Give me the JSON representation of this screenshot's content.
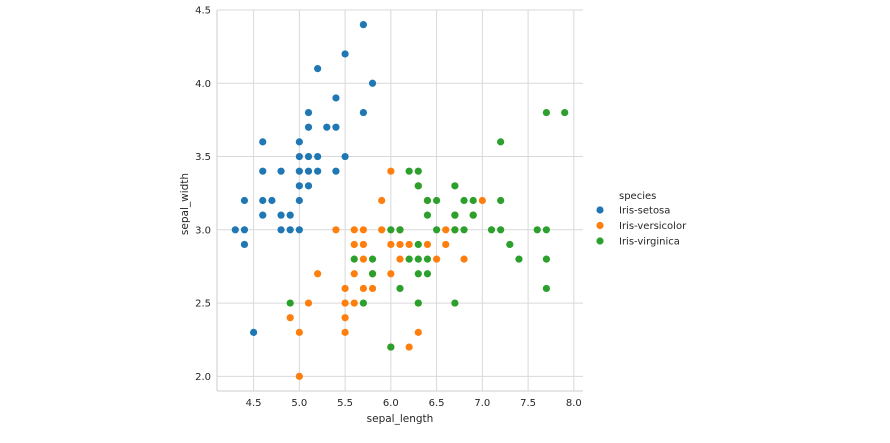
{
  "chart_data": {
    "type": "scatter",
    "xlabel": "sepal_length",
    "ylabel": "sepal_width",
    "xlim": [
      4.1,
      8.1
    ],
    "ylim": [
      1.9,
      4.5
    ],
    "xticks": [
      "4.5",
      "5.0",
      "5.5",
      "6.0",
      "6.5",
      "7.0",
      "7.5",
      "8.0"
    ],
    "yticks": [
      "2.0",
      "2.5",
      "3.0",
      "3.5",
      "4.0",
      "4.5"
    ],
    "grid": true,
    "legend": {
      "title": "species",
      "placement": "right"
    },
    "series": [
      {
        "name": "Iris-setosa",
        "color": "#1f77b4",
        "points": [
          [
            4.3,
            3.0
          ],
          [
            4.4,
            2.9
          ],
          [
            4.4,
            3.0
          ],
          [
            4.4,
            3.2
          ],
          [
            4.5,
            2.3
          ],
          [
            4.6,
            3.1
          ],
          [
            4.6,
            3.2
          ],
          [
            4.6,
            3.4
          ],
          [
            4.6,
            3.6
          ],
          [
            4.7,
            3.2
          ],
          [
            4.8,
            3.0
          ],
          [
            4.8,
            3.1
          ],
          [
            4.8,
            3.4
          ],
          [
            4.9,
            3.0
          ],
          [
            4.9,
            3.1
          ],
          [
            5.0,
            3.0
          ],
          [
            5.0,
            3.2
          ],
          [
            5.0,
            3.3
          ],
          [
            5.0,
            3.4
          ],
          [
            5.0,
            3.5
          ],
          [
            5.0,
            3.6
          ],
          [
            5.1,
            3.3
          ],
          [
            5.1,
            3.4
          ],
          [
            5.1,
            3.5
          ],
          [
            5.1,
            3.7
          ],
          [
            5.1,
            3.8
          ],
          [
            5.2,
            3.4
          ],
          [
            5.2,
            3.5
          ],
          [
            5.2,
            4.1
          ],
          [
            5.3,
            3.7
          ],
          [
            5.4,
            3.4
          ],
          [
            5.4,
            3.7
          ],
          [
            5.4,
            3.9
          ],
          [
            5.5,
            3.5
          ],
          [
            5.5,
            4.2
          ],
          [
            5.7,
            3.8
          ],
          [
            5.7,
            4.4
          ],
          [
            5.8,
            4.0
          ]
        ]
      },
      {
        "name": "Iris-versicolor",
        "color": "#ff7f0e",
        "points": [
          [
            4.9,
            2.4
          ],
          [
            5.0,
            2.0
          ],
          [
            5.0,
            2.3
          ],
          [
            5.1,
            2.5
          ],
          [
            5.2,
            2.7
          ],
          [
            5.4,
            3.0
          ],
          [
            5.5,
            2.3
          ],
          [
            5.5,
            2.4
          ],
          [
            5.5,
            2.5
          ],
          [
            5.5,
            2.6
          ],
          [
            5.6,
            2.5
          ],
          [
            5.6,
            2.7
          ],
          [
            5.6,
            2.9
          ],
          [
            5.6,
            3.0
          ],
          [
            5.7,
            2.6
          ],
          [
            5.7,
            2.8
          ],
          [
            5.7,
            2.9
          ],
          [
            5.7,
            3.0
          ],
          [
            5.8,
            2.6
          ],
          [
            5.8,
            2.7
          ],
          [
            5.9,
            3.0
          ],
          [
            5.9,
            3.2
          ],
          [
            6.0,
            2.2
          ],
          [
            6.0,
            2.7
          ],
          [
            6.0,
            2.9
          ],
          [
            6.0,
            3.4
          ],
          [
            6.1,
            2.8
          ],
          [
            6.1,
            2.9
          ],
          [
            6.1,
            3.0
          ],
          [
            6.2,
            2.2
          ],
          [
            6.2,
            2.9
          ],
          [
            6.3,
            2.3
          ],
          [
            6.3,
            2.5
          ],
          [
            6.3,
            3.3
          ],
          [
            6.4,
            2.9
          ],
          [
            6.4,
            3.2
          ],
          [
            6.5,
            2.8
          ],
          [
            6.6,
            2.9
          ],
          [
            6.6,
            3.0
          ],
          [
            6.7,
            3.0
          ],
          [
            6.7,
            3.1
          ],
          [
            6.8,
            2.8
          ],
          [
            6.9,
            3.1
          ],
          [
            7.0,
            3.2
          ]
        ]
      },
      {
        "name": "Iris-virginica",
        "color": "#2ca02c",
        "points": [
          [
            4.9,
            2.5
          ],
          [
            5.6,
            2.8
          ],
          [
            5.7,
            2.5
          ],
          [
            5.8,
            2.7
          ],
          [
            5.8,
            2.8
          ],
          [
            6.0,
            2.2
          ],
          [
            6.0,
            3.0
          ],
          [
            6.1,
            2.6
          ],
          [
            6.1,
            3.0
          ],
          [
            6.2,
            2.8
          ],
          [
            6.2,
            3.4
          ],
          [
            6.3,
            2.5
          ],
          [
            6.3,
            2.7
          ],
          [
            6.3,
            2.8
          ],
          [
            6.3,
            2.9
          ],
          [
            6.3,
            3.3
          ],
          [
            6.3,
            3.4
          ],
          [
            6.4,
            2.7
          ],
          [
            6.4,
            2.8
          ],
          [
            6.4,
            3.1
          ],
          [
            6.4,
            3.2
          ],
          [
            6.5,
            3.0
          ],
          [
            6.5,
            3.2
          ],
          [
            6.7,
            2.5
          ],
          [
            6.7,
            3.0
          ],
          [
            6.7,
            3.1
          ],
          [
            6.7,
            3.3
          ],
          [
            6.8,
            3.0
          ],
          [
            6.8,
            3.2
          ],
          [
            6.9,
            3.1
          ],
          [
            6.9,
            3.2
          ],
          [
            7.1,
            3.0
          ],
          [
            7.2,
            3.0
          ],
          [
            7.2,
            3.2
          ],
          [
            7.2,
            3.6
          ],
          [
            7.3,
            2.9
          ],
          [
            7.4,
            2.8
          ],
          [
            7.6,
            3.0
          ],
          [
            7.7,
            2.6
          ],
          [
            7.7,
            2.8
          ],
          [
            7.7,
            3.0
          ],
          [
            7.7,
            3.8
          ],
          [
            7.9,
            3.8
          ]
        ]
      }
    ]
  }
}
